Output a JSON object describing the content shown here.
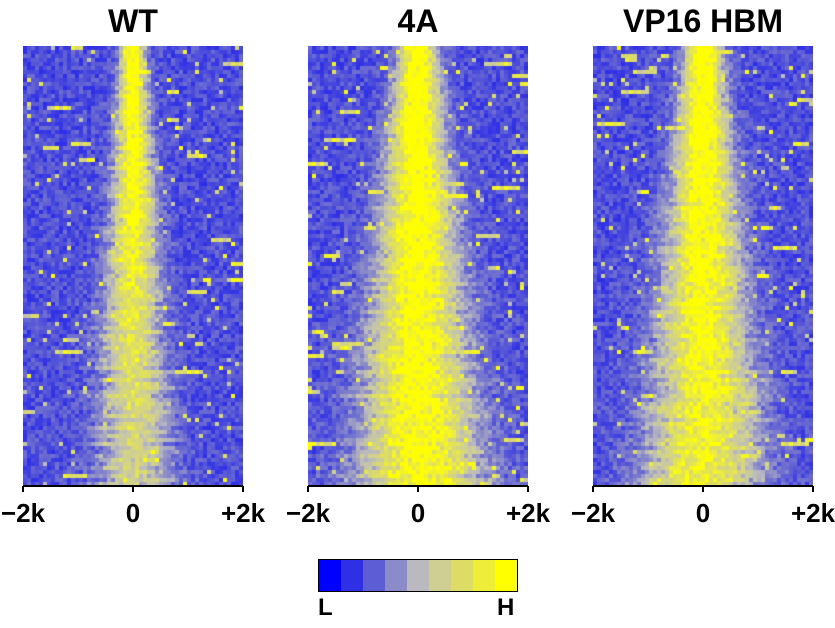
{
  "chart_data": [
    {
      "type": "heatmap",
      "title": "WT",
      "x_ticks": [
        "−2k",
        "0",
        "+2k"
      ],
      "xlim": [
        -2000,
        2000
      ],
      "signal_profile": {
        "center_bp": 0,
        "peak_width_bp": 250,
        "top_rows_intensity": 0.95,
        "bottom_rows_intensity": 0.45,
        "spread_with_rank": "increasing"
      }
    },
    {
      "type": "heatmap",
      "title": "4A",
      "x_ticks": [
        "−2k",
        "0",
        "+2k"
      ],
      "xlim": [
        -2000,
        2000
      ],
      "signal_profile": {
        "center_bp": 0,
        "peak_width_bp": 400,
        "top_rows_intensity": 0.95,
        "bottom_rows_intensity": 0.8,
        "spread_with_rank": "increasing"
      }
    },
    {
      "type": "heatmap",
      "title": "VP16 HBM",
      "x_ticks": [
        "−2k",
        "0",
        "+2k"
      ],
      "xlim": [
        -2000,
        2000
      ],
      "signal_profile": {
        "center_bp": 0,
        "peak_width_bp": 380,
        "top_rows_intensity": 0.95,
        "bottom_rows_intensity": 0.7,
        "spread_with_rank": "increasing"
      }
    }
  ],
  "legend": {
    "low_label": "L",
    "high_label": "H",
    "colors": [
      "#0000ff",
      "#2f2fe6",
      "#5d5dd5",
      "#8b8bc9",
      "#b9b9bf",
      "#cfcf94",
      "#dcdc66",
      "#eeee3a",
      "#ffff00"
    ]
  }
}
